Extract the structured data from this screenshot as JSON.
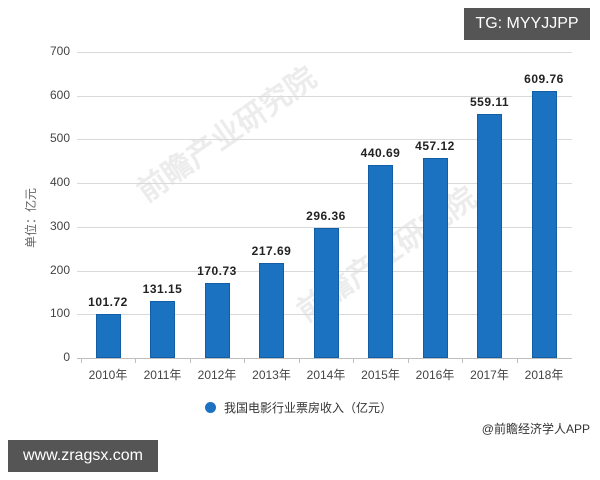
{
  "chart_data": {
    "type": "bar",
    "title": "",
    "xlabel": "",
    "ylabel": "单位：亿元",
    "ylim": [
      0,
      700
    ],
    "yticks": [
      0,
      100,
      200,
      300,
      400,
      500,
      600,
      700
    ],
    "categories": [
      "2010年",
      "2011年",
      "2012年",
      "2013年",
      "2014年",
      "2015年",
      "2016年",
      "2017年",
      "2018年"
    ],
    "values": [
      101.72,
      131.15,
      170.73,
      217.69,
      296.36,
      440.69,
      457.12,
      559.11,
      609.76
    ],
    "value_labels": [
      "101.72",
      "131.15",
      "170.73",
      "217.69",
      "296.36",
      "440.69",
      "457.12",
      "559.11",
      "609.76"
    ],
    "series": [
      {
        "name": "我国电影行业票房收入（亿元）",
        "color": "#1a72c1"
      }
    ],
    "grid": true,
    "legend_position": "bottom"
  },
  "legend": {
    "label": "我国电影行业票房收入（亿元）"
  },
  "source": "@前瞻经济学人APP",
  "watermark": "前瞻产业研究院",
  "overlays": {
    "tg_badge": "TG: MYYJJPP",
    "url_badge": "www.zragsx.com"
  },
  "colors": {
    "bar": "#1a72c1",
    "grid": "#d9d9d9",
    "badge": "#555555"
  }
}
